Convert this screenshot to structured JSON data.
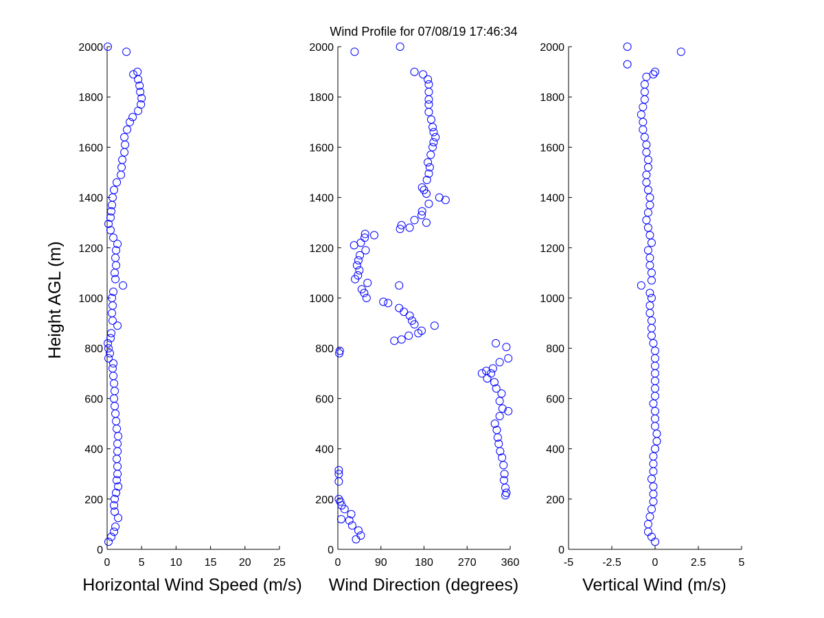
{
  "title": "Wind Profile for  07/08/19 17:46:34",
  "ylabel": "Height AGL (m)",
  "marker_color": "#0000ff",
  "chart_data": [
    {
      "type": "scatter",
      "name": "horizontal-speed",
      "xlabel": "Horizontal Wind Speed (m/s)",
      "ylabel": "Height AGL (m)",
      "xlim": [
        0,
        25
      ],
      "ylim": [
        0,
        2000
      ],
      "xticks": [
        0,
        5,
        10,
        15,
        20,
        25
      ],
      "xtick_labels": [
        "0",
        "5",
        "10",
        "15",
        "20",
        "25"
      ],
      "yticks": [
        0,
        200,
        400,
        600,
        800,
        1000,
        1200,
        1400,
        1600,
        1800,
        2000
      ],
      "ytick_labels": [
        "0",
        "200",
        "400",
        "600",
        "800",
        "1000",
        "1200",
        "1400",
        "1600",
        "1800",
        "2000"
      ],
      "grid": false,
      "points": [
        [
          0.2,
          30
        ],
        [
          0.6,
          50
        ],
        [
          1.0,
          70
        ],
        [
          1.2,
          90
        ],
        [
          1.6,
          125
        ],
        [
          1.1,
          150
        ],
        [
          1.0,
          175
        ],
        [
          1.1,
          200
        ],
        [
          1.3,
          225
        ],
        [
          1.6,
          250
        ],
        [
          1.4,
          275
        ],
        [
          1.5,
          300
        ],
        [
          1.5,
          330
        ],
        [
          1.4,
          360
        ],
        [
          1.5,
          390
        ],
        [
          1.5,
          420
        ],
        [
          1.6,
          450
        ],
        [
          1.4,
          480
        ],
        [
          1.3,
          510
        ],
        [
          1.2,
          540
        ],
        [
          1.1,
          570
        ],
        [
          1.0,
          600
        ],
        [
          1.1,
          630
        ],
        [
          1.0,
          660
        ],
        [
          0.9,
          690
        ],
        [
          0.8,
          720
        ],
        [
          0.9,
          740
        ],
        [
          0.2,
          760
        ],
        [
          0.4,
          780
        ],
        [
          0.2,
          800
        ],
        [
          0.1,
          820
        ],
        [
          0.5,
          840
        ],
        [
          0.6,
          860
        ],
        [
          1.5,
          890
        ],
        [
          0.8,
          910
        ],
        [
          0.7,
          940
        ],
        [
          0.8,
          970
        ],
        [
          0.7,
          1000
        ],
        [
          0.9,
          1025
        ],
        [
          2.3,
          1050
        ],
        [
          1.2,
          1075
        ],
        [
          1.1,
          1100
        ],
        [
          1.3,
          1130
        ],
        [
          1.2,
          1160
        ],
        [
          1.3,
          1190
        ],
        [
          1.5,
          1215
        ],
        [
          0.9,
          1240
        ],
        [
          0.5,
          1270
        ],
        [
          0.2,
          1295
        ],
        [
          0.5,
          1320
        ],
        [
          0.6,
          1345
        ],
        [
          0.7,
          1370
        ],
        [
          0.8,
          1400
        ],
        [
          1.0,
          1430
        ],
        [
          1.4,
          1460
        ],
        [
          2.0,
          1490
        ],
        [
          2.1,
          1520
        ],
        [
          2.2,
          1550
        ],
        [
          2.5,
          1580
        ],
        [
          2.6,
          1610
        ],
        [
          2.5,
          1640
        ],
        [
          2.9,
          1670
        ],
        [
          3.3,
          1700
        ],
        [
          3.7,
          1720
        ],
        [
          4.5,
          1745
        ],
        [
          4.9,
          1770
        ],
        [
          5.0,
          1795
        ],
        [
          4.8,
          1820
        ],
        [
          4.7,
          1845
        ],
        [
          4.5,
          1870
        ],
        [
          3.8,
          1890
        ],
        [
          4.4,
          1900
        ],
        [
          2.8,
          1980
        ],
        [
          0.1,
          2000
        ]
      ]
    },
    {
      "type": "scatter",
      "name": "wind-direction",
      "xlabel": "Wind Direction (degrees)",
      "ylabel": "",
      "xlim": [
        0,
        360
      ],
      "ylim": [
        0,
        2000
      ],
      "xticks": [
        0,
        90,
        180,
        270,
        360
      ],
      "xtick_labels": [
        "0",
        "90",
        "180",
        "270",
        "360"
      ],
      "yticks": [
        0,
        200,
        400,
        600,
        800,
        1000,
        1200,
        1400,
        1600,
        1800,
        2000
      ],
      "ytick_labels": [
        "0",
        "200",
        "400",
        "600",
        "800",
        "1000",
        "1200",
        "1400",
        "1600",
        "1800",
        "2000"
      ],
      "grid": false,
      "points": [
        [
          38,
          40
        ],
        [
          48,
          55
        ],
        [
          43,
          75
        ],
        [
          30,
          95
        ],
        [
          24,
          115
        ],
        [
          7,
          120
        ],
        [
          28,
          140
        ],
        [
          14,
          160
        ],
        [
          8,
          175
        ],
        [
          5,
          190
        ],
        [
          2,
          200
        ],
        [
          2,
          270
        ],
        [
          2,
          300
        ],
        [
          2,
          315
        ],
        [
          350,
          215
        ],
        [
          352,
          225
        ],
        [
          350,
          245
        ],
        [
          347,
          275
        ],
        [
          348,
          300
        ],
        [
          346,
          335
        ],
        [
          343,
          365
        ],
        [
          339,
          390
        ],
        [
          336,
          420
        ],
        [
          334,
          445
        ],
        [
          332,
          475
        ],
        [
          328,
          500
        ],
        [
          338,
          530
        ],
        [
          344,
          560
        ],
        [
          356,
          550
        ],
        [
          338,
          590
        ],
        [
          342,
          620
        ],
        [
          331,
          640
        ],
        [
          327,
          665
        ],
        [
          312,
          680
        ],
        [
          320,
          700
        ],
        [
          301,
          700
        ],
        [
          310,
          710
        ],
        [
          324,
          720
        ],
        [
          338,
          745
        ],
        [
          356,
          760
        ],
        [
          352,
          805
        ],
        [
          330,
          820
        ],
        [
          3,
          780
        ],
        [
          4,
          790
        ],
        [
          118,
          830
        ],
        [
          133,
          835
        ],
        [
          148,
          850
        ],
        [
          168,
          860
        ],
        [
          175,
          870
        ],
        [
          202,
          890
        ],
        [
          160,
          895
        ],
        [
          155,
          910
        ],
        [
          150,
          930
        ],
        [
          138,
          945
        ],
        [
          128,
          960
        ],
        [
          105,
          980
        ],
        [
          95,
          985
        ],
        [
          60,
          1000
        ],
        [
          55,
          1020
        ],
        [
          50,
          1035
        ],
        [
          62,
          1060
        ],
        [
          128,
          1050
        ],
        [
          36,
          1075
        ],
        [
          42,
          1090
        ],
        [
          45,
          1110
        ],
        [
          40,
          1130
        ],
        [
          43,
          1150
        ],
        [
          46,
          1170
        ],
        [
          58,
          1190
        ],
        [
          34,
          1210
        ],
        [
          48,
          1220
        ],
        [
          56,
          1240
        ],
        [
          57,
          1255
        ],
        [
          76,
          1250
        ],
        [
          130,
          1275
        ],
        [
          150,
          1280
        ],
        [
          133,
          1290
        ],
        [
          160,
          1310
        ],
        [
          185,
          1300
        ],
        [
          175,
          1330
        ],
        [
          176,
          1345
        ],
        [
          190,
          1375
        ],
        [
          212,
          1400
        ],
        [
          225,
          1390
        ],
        [
          185,
          1415
        ],
        [
          180,
          1430
        ],
        [
          176,
          1440
        ],
        [
          186,
          1470
        ],
        [
          190,
          1495
        ],
        [
          192,
          1520
        ],
        [
          188,
          1540
        ],
        [
          194,
          1570
        ],
        [
          198,
          1600
        ],
        [
          200,
          1620
        ],
        [
          204,
          1640
        ],
        [
          200,
          1660
        ],
        [
          198,
          1680
        ],
        [
          195,
          1710
        ],
        [
          190,
          1740
        ],
        [
          190,
          1770
        ],
        [
          190,
          1790
        ],
        [
          190,
          1820
        ],
        [
          190,
          1850
        ],
        [
          188,
          1870
        ],
        [
          178,
          1890
        ],
        [
          160,
          1900
        ],
        [
          35,
          1980
        ],
        [
          130,
          2000
        ]
      ]
    },
    {
      "type": "scatter",
      "name": "vertical-wind",
      "xlabel": "Vertical Wind (m/s)",
      "ylabel": "",
      "xlim": [
        -5,
        5
      ],
      "ylim": [
        0,
        2000
      ],
      "xticks": [
        -5,
        -2.5,
        0,
        2.5,
        5
      ],
      "xtick_labels": [
        "-5",
        "-2.5",
        "0",
        "2.5",
        "5"
      ],
      "yticks": [
        0,
        200,
        400,
        600,
        800,
        1000,
        1200,
        1400,
        1600,
        1800,
        2000
      ],
      "ytick_labels": [
        "0",
        "200",
        "400",
        "600",
        "800",
        "1000",
        "1200",
        "1400",
        "1600",
        "1800",
        "2000"
      ],
      "grid": false,
      "points": [
        [
          0.0,
          30
        ],
        [
          -0.2,
          50
        ],
        [
          -0.4,
          70
        ],
        [
          -0.4,
          100
        ],
        [
          -0.3,
          130
        ],
        [
          -0.2,
          160
        ],
        [
          -0.1,
          190
        ],
        [
          -0.1,
          220
        ],
        [
          -0.1,
          250
        ],
        [
          -0.2,
          280
        ],
        [
          -0.1,
          310
        ],
        [
          -0.1,
          340
        ],
        [
          -0.1,
          370
        ],
        [
          0.0,
          400
        ],
        [
          0.1,
          430
        ],
        [
          0.1,
          460
        ],
        [
          0.0,
          490
        ],
        [
          0.0,
          520
        ],
        [
          0.0,
          550
        ],
        [
          -0.1,
          580
        ],
        [
          0.0,
          610
        ],
        [
          0.0,
          640
        ],
        [
          0.0,
          670
        ],
        [
          0.0,
          700
        ],
        [
          0.0,
          730
        ],
        [
          0.0,
          760
        ],
        [
          0.0,
          790
        ],
        [
          -0.1,
          820
        ],
        [
          -0.2,
          850
        ],
        [
          -0.2,
          880
        ],
        [
          -0.2,
          910
        ],
        [
          -0.3,
          940
        ],
        [
          -0.3,
          970
        ],
        [
          -0.2,
          1000
        ],
        [
          -0.3,
          1020
        ],
        [
          -0.8,
          1050
        ],
        [
          -0.2,
          1070
        ],
        [
          -0.2,
          1100
        ],
        [
          -0.3,
          1130
        ],
        [
          -0.3,
          1160
        ],
        [
          -0.4,
          1190
        ],
        [
          -0.2,
          1220
        ],
        [
          -0.3,
          1250
        ],
        [
          -0.4,
          1280
        ],
        [
          -0.5,
          1310
        ],
        [
          -0.4,
          1340
        ],
        [
          -0.3,
          1370
        ],
        [
          -0.3,
          1400
        ],
        [
          -0.4,
          1430
        ],
        [
          -0.5,
          1460
        ],
        [
          -0.5,
          1490
        ],
        [
          -0.4,
          1520
        ],
        [
          -0.4,
          1550
        ],
        [
          -0.5,
          1580
        ],
        [
          -0.5,
          1610
        ],
        [
          -0.6,
          1640
        ],
        [
          -0.7,
          1670
        ],
        [
          -0.7,
          1700
        ],
        [
          -0.8,
          1730
        ],
        [
          -0.7,
          1760
        ],
        [
          -0.6,
          1790
        ],
        [
          -0.6,
          1820
        ],
        [
          -0.6,
          1850
        ],
        [
          -0.5,
          1880
        ],
        [
          -0.1,
          1890
        ],
        [
          0.0,
          1900
        ],
        [
          -1.6,
          1930
        ],
        [
          -1.6,
          2000
        ],
        [
          1.5,
          1980
        ]
      ]
    }
  ]
}
